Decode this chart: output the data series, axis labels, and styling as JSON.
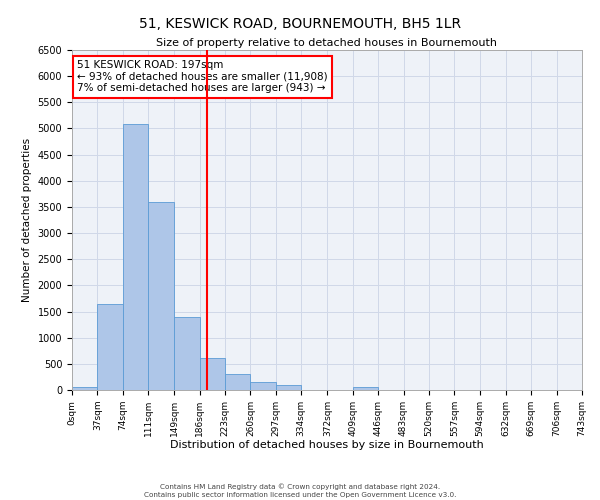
{
  "title": "51, KESWICK ROAD, BOURNEMOUTH, BH5 1LR",
  "subtitle": "Size of property relative to detached houses in Bournemouth",
  "xlabel": "Distribution of detached houses by size in Bournemouth",
  "ylabel": "Number of detached properties",
  "footer_line1": "Contains HM Land Registry data © Crown copyright and database right 2024.",
  "footer_line2": "Contains public sector information licensed under the Open Government Licence v3.0.",
  "bin_edges": [
    0,
    37,
    74,
    111,
    149,
    186,
    223,
    260,
    297,
    334,
    372,
    409,
    446,
    483,
    520,
    557,
    594,
    632,
    669,
    706,
    743
  ],
  "bin_labels": [
    "0sqm",
    "37sqm",
    "74sqm",
    "111sqm",
    "149sqm",
    "186sqm",
    "223sqm",
    "260sqm",
    "297sqm",
    "334sqm",
    "372sqm",
    "409sqm",
    "446sqm",
    "483sqm",
    "520sqm",
    "557sqm",
    "594sqm",
    "632sqm",
    "669sqm",
    "706sqm",
    "743sqm"
  ],
  "bar_heights": [
    60,
    1650,
    5080,
    3600,
    1400,
    620,
    300,
    155,
    90,
    0,
    0,
    60,
    0,
    0,
    0,
    0,
    0,
    0,
    0,
    0
  ],
  "bar_color": "#aec6e8",
  "bar_edge_color": "#5b9bd5",
  "vline_x": 197,
  "vline_color": "red",
  "ylim": [
    0,
    6500
  ],
  "yticks": [
    0,
    500,
    1000,
    1500,
    2000,
    2500,
    3000,
    3500,
    4000,
    4500,
    5000,
    5500,
    6000,
    6500
  ],
  "annotation_text": "51 KESWICK ROAD: 197sqm\n← 93% of detached houses are smaller (11,908)\n7% of semi-detached houses are larger (943) →",
  "annotation_box_color": "red",
  "grid_color": "#d0d8e8",
  "background_color": "#eef2f8"
}
